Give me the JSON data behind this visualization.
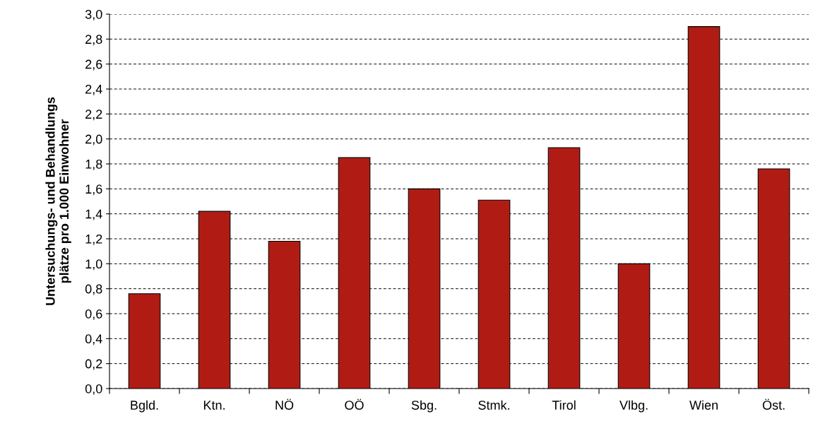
{
  "chart_data": {
    "type": "bar",
    "ylabel": "Untersuchungs- und Behandlungs\nplätze pro 1.000 Einwohner",
    "categories": [
      "Bgld.",
      "Ktn.",
      "NÖ",
      "OÖ",
      "Sbg.",
      "Stmk.",
      "Tirol",
      "Vlbg.",
      "Wien",
      "Öst."
    ],
    "values": [
      0.76,
      1.42,
      1.18,
      1.85,
      1.6,
      1.51,
      1.93,
      1.0,
      2.9,
      1.76
    ],
    "color": "#b01c14",
    "ylim": [
      0,
      3.0
    ],
    "yticks": [
      {
        "value": 0,
        "label": "0,0"
      },
      {
        "value": 0.2,
        "label": "0,2"
      },
      {
        "value": 0.4,
        "label": "0,4"
      },
      {
        "value": 0.6,
        "label": "0,6"
      },
      {
        "value": 0.8,
        "label": "0,8"
      },
      {
        "value": 1.0,
        "label": "1,0"
      },
      {
        "value": 1.2,
        "label": "1,2"
      },
      {
        "value": 1.4,
        "label": "1,4"
      },
      {
        "value": 1.6,
        "label": "1,6"
      },
      {
        "value": 1.8,
        "label": "1,8"
      },
      {
        "value": 2.0,
        "label": "2,0"
      },
      {
        "value": 2.2,
        "label": "2,2"
      },
      {
        "value": 2.4,
        "label": "2,4"
      },
      {
        "value": 2.6,
        "label": "2,6"
      },
      {
        "value": 2.8,
        "label": "2,8"
      },
      {
        "value": 3.0,
        "label": "3,0"
      }
    ],
    "grid": "y"
  }
}
